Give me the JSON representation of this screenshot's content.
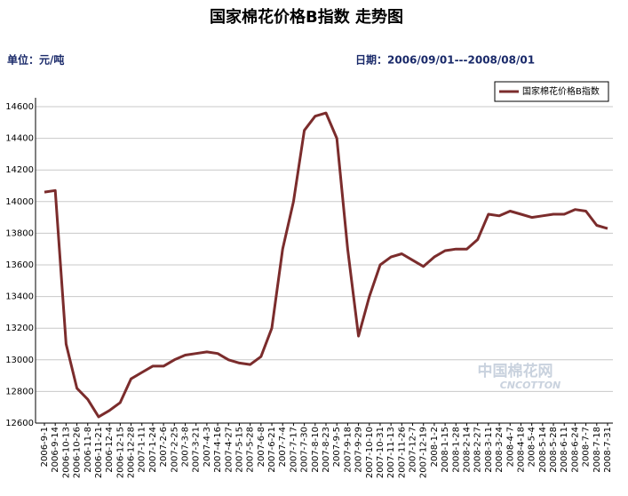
{
  "chart_data": {
    "type": "line",
    "title": "国家棉花价格B指数 走势图",
    "unit": "单位：元/吨",
    "date_range": "日期：2006/09/01---2008/08/01",
    "watermark": "中国棉花网",
    "watermark_sub": "CNCOTTON",
    "categories": [
      "2006-9-1",
      "2006-9-14",
      "2006-10-13",
      "2006-10-26",
      "2006-11-8",
      "2006-11-21",
      "2006-12-4",
      "2006-12-15",
      "2006-12-28",
      "2007-1-11",
      "2007-1-24",
      "2007-2-6",
      "2007-2-25",
      "2007-3-8",
      "2007-3-21",
      "2007-4-3",
      "2007-4-16",
      "2007-4-27",
      "2007-5-15",
      "2007-5-28",
      "2007-6-8",
      "2007-6-21",
      "2007-7-4",
      "2007-7-17",
      "2007-7-30",
      "2007-8-10",
      "2007-8-23",
      "2007-9-5",
      "2007-9-18",
      "2007-9-29",
      "2007-10-10",
      "2007-10-31",
      "2007-11-13",
      "2007-11-26",
      "2007-12-7",
      "2007-12-19",
      "2008-1-2",
      "2008-1-15",
      "2008-1-28",
      "2008-2-14",
      "2008-2-27",
      "2008-3-11",
      "2008-3-24",
      "2008-4-7",
      "2008-4-18",
      "2008-5-4",
      "2008-5-14",
      "2008-5-28",
      "2008-6-11",
      "2008-6-24",
      "2008-7-7",
      "2008-7-18",
      "2008-7-31"
    ],
    "series": [
      {
        "name": "国家棉花价格B指数",
        "color": "#7b2c2c",
        "values": [
          14060,
          14070,
          13100,
          12820,
          12750,
          12640,
          12680,
          12730,
          12880,
          12920,
          12960,
          12960,
          13000,
          13030,
          13040,
          13050,
          13040,
          13000,
          12980,
          12970,
          13020,
          13200,
          13700,
          14000,
          14450,
          14540,
          14560,
          14400,
          13700,
          13150,
          13400,
          13600,
          13650,
          13670,
          13630,
          13590,
          13650,
          13690,
          13700,
          13700,
          13760,
          13920,
          13910,
          13940,
          13920,
          13900,
          13910,
          13920,
          13920,
          13950,
          13940,
          13850,
          13830
        ]
      }
    ],
    "ylim": [
      12600,
      14600
    ],
    "yticks": [
      12600,
      12800,
      13000,
      13200,
      13400,
      13600,
      13800,
      14000,
      14200,
      14400,
      14600
    ],
    "grid": true
  }
}
